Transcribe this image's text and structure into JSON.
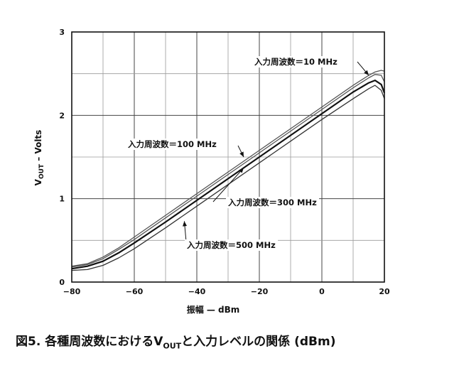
{
  "chart_data": {
    "type": "line",
    "xlabel": "振幅 — dBm",
    "ylabel_main": "V",
    "ylabel_sub": "OUT",
    "ylabel_rest": " – Volts",
    "xlim": [
      -80,
      20
    ],
    "ylim": [
      0,
      3
    ],
    "xticks": [
      -80,
      -60,
      -40,
      -20,
      0,
      20
    ],
    "yticks": [
      0,
      1,
      2,
      3
    ],
    "grid": true,
    "legend": "none",
    "series": [
      {
        "name": "入力周波数＝10 MHz",
        "x": [
          -80,
          -75,
          -70,
          -65,
          -60,
          -50,
          -40,
          -30,
          -20,
          -10,
          0,
          10,
          15,
          17,
          19,
          20
        ],
        "y": [
          0.19,
          0.22,
          0.3,
          0.41,
          0.54,
          0.8,
          1.06,
          1.32,
          1.58,
          1.84,
          2.1,
          2.36,
          2.48,
          2.52,
          2.54,
          2.53
        ]
      },
      {
        "name": "入力周波数＝100 MHz",
        "x": [
          -80,
          -75,
          -70,
          -65,
          -60,
          -50,
          -40,
          -30,
          -20,
          -10,
          0,
          10,
          15,
          17,
          19,
          20
        ],
        "y": [
          0.18,
          0.21,
          0.28,
          0.39,
          0.51,
          0.77,
          1.03,
          1.29,
          1.55,
          1.81,
          2.07,
          2.33,
          2.45,
          2.49,
          2.48,
          2.4
        ]
      },
      {
        "name": "入力周波数＝300 MHz",
        "x": [
          -80,
          -75,
          -70,
          -65,
          -60,
          -50,
          -40,
          -30,
          -20,
          -10,
          0,
          10,
          15,
          17,
          19,
          20
        ],
        "y": [
          0.16,
          0.19,
          0.25,
          0.35,
          0.47,
          0.72,
          0.98,
          1.24,
          1.5,
          1.76,
          2.02,
          2.28,
          2.39,
          2.42,
          2.37,
          2.27
        ]
      },
      {
        "name": "入力周波数＝500 MHz",
        "x": [
          -80,
          -75,
          -70,
          -65,
          -60,
          -50,
          -40,
          -30,
          -20,
          -10,
          0,
          10,
          15,
          17,
          19,
          20
        ],
        "y": [
          0.14,
          0.15,
          0.2,
          0.29,
          0.4,
          0.65,
          0.91,
          1.17,
          1.43,
          1.69,
          1.95,
          2.2,
          2.32,
          2.36,
          2.3,
          2.2
        ]
      }
    ],
    "annotations": [
      {
        "text": "入力周波数＝10 MHz",
        "target_x": 15,
        "target_y": 2.48
      },
      {
        "text": "入力周波数＝100 MHz",
        "target_x": -25,
        "target_y": 1.5
      },
      {
        "text": "入力周波数＝300 MHz",
        "target_x": -25,
        "target_y": 1.37
      },
      {
        "text": "入力周波数＝500 MHz",
        "target_x": -44,
        "target_y": 0.73
      }
    ]
  },
  "caption": {
    "prefix": "図5. 各種周波数におけるV",
    "sub": "OUT",
    "suffix": "と入力レベルの関係 (dBm)"
  }
}
